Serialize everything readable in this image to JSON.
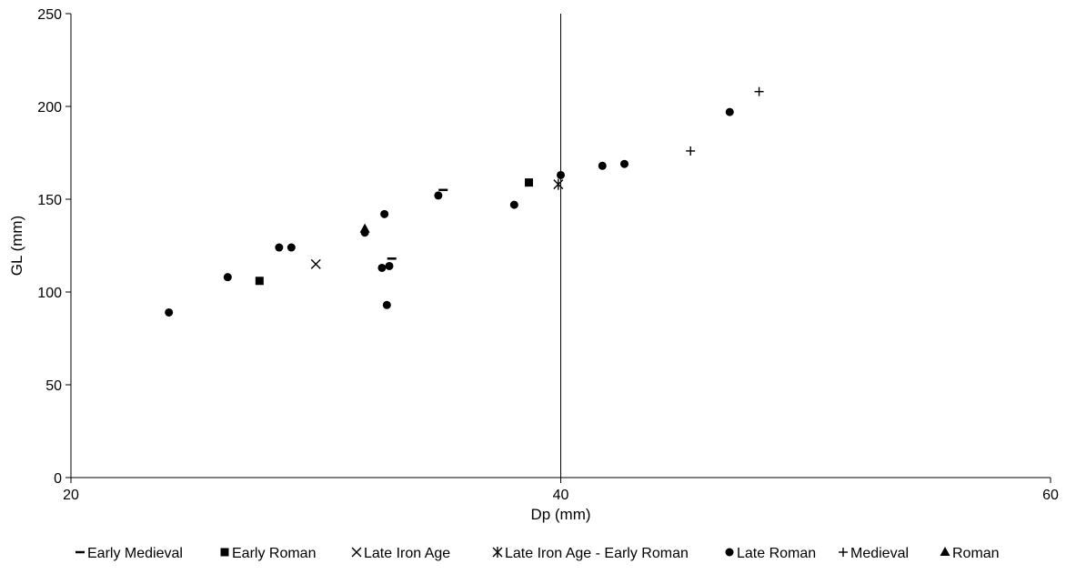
{
  "chart_data": {
    "type": "scatter",
    "xlabel": "Dp (mm)",
    "ylabel": "GL (mm)",
    "xlim": [
      20,
      60
    ],
    "ylim": [
      0,
      250
    ],
    "x_ticks": [
      20,
      40,
      60
    ],
    "y_ticks": [
      0,
      50,
      100,
      150,
      200,
      250
    ],
    "reference_line_x": 40,
    "grid": false,
    "legend_position": "bottom",
    "series": [
      {
        "name": "Early Medieval",
        "marker": "dash",
        "color": "#000000",
        "points": [
          [
            35.2,
            155
          ],
          [
            33.1,
            118
          ]
        ]
      },
      {
        "name": "Early Roman",
        "marker": "square",
        "color": "#000000",
        "points": [
          [
            27.7,
            106
          ],
          [
            38.7,
            159
          ]
        ]
      },
      {
        "name": "Late Iron Age",
        "marker": "x",
        "color": "#000000",
        "points": [
          [
            30.0,
            115
          ]
        ]
      },
      {
        "name": "Late Iron Age - Early Roman",
        "marker": "asterisk",
        "color": "#000000",
        "points": [
          [
            39.9,
            158
          ]
        ]
      },
      {
        "name": "Late Roman",
        "marker": "circle",
        "color": "#000000",
        "points": [
          [
            24.0,
            89
          ],
          [
            26.4,
            108
          ],
          [
            28.5,
            124
          ],
          [
            29.0,
            124
          ],
          [
            32.0,
            132
          ],
          [
            32.7,
            113
          ],
          [
            32.8,
            142
          ],
          [
            32.9,
            93
          ],
          [
            33.0,
            114
          ],
          [
            35.0,
            152
          ],
          [
            38.1,
            147
          ],
          [
            40.0,
            163
          ],
          [
            41.7,
            168
          ],
          [
            42.6,
            169
          ],
          [
            46.9,
            197
          ]
        ]
      },
      {
        "name": "Medieval",
        "marker": "plus",
        "color": "#000000",
        "points": [
          [
            45.3,
            176
          ],
          [
            48.1,
            208
          ]
        ]
      },
      {
        "name": "Roman",
        "marker": "triangle",
        "color": "#000000",
        "points": [
          [
            32.0,
            134
          ]
        ]
      }
    ]
  }
}
